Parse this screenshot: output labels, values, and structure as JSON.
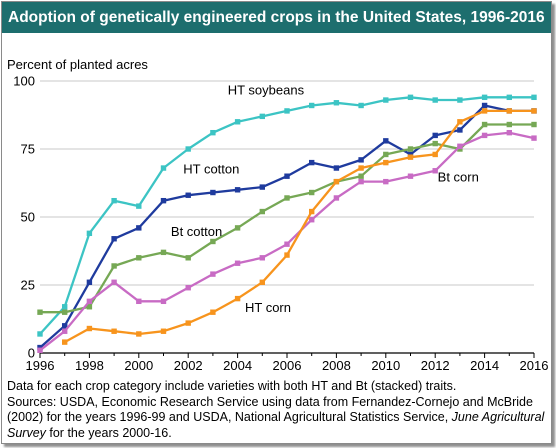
{
  "chart_data": {
    "type": "line",
    "title": "Adoption of genetically engineered crops in the United States, 1996-2016",
    "ylabel": "Percent of planted acres",
    "xlabel": "",
    "xlim": [
      1996,
      2016
    ],
    "ylim": [
      0,
      100
    ],
    "x_ticks": [
      "1996",
      "1998",
      "2000",
      "2002",
      "2004",
      "2006",
      "2008",
      "2010",
      "2012",
      "2014",
      "2016"
    ],
    "y_ticks": [
      "0",
      "25",
      "50",
      "75",
      "100"
    ],
    "grid": "horizontal",
    "legend": "inline-labels",
    "x": [
      1996,
      1997,
      1998,
      1999,
      2000,
      2001,
      2002,
      2003,
      2004,
      2005,
      2006,
      2007,
      2008,
      2009,
      2010,
      2011,
      2012,
      2013,
      2014,
      2015,
      2016
    ],
    "series": [
      {
        "name": "HT soybeans",
        "color": "#3cc4c4",
        "values": [
          7,
          17,
          44,
          56,
          54,
          68,
          75,
          81,
          85,
          87,
          89,
          91,
          92,
          91,
          93,
          94,
          93,
          93,
          94,
          94,
          94
        ]
      },
      {
        "name": "HT cotton",
        "color": "#1f3b9e",
        "values": [
          2,
          10,
          26,
          42,
          46,
          56,
          58,
          59,
          60,
          61,
          65,
          70,
          68,
          71,
          78,
          73,
          80,
          82,
          91,
          89,
          89
        ]
      },
      {
        "name": "Bt cotton",
        "color": "#76a855",
        "values": [
          15,
          15,
          17,
          32,
          35,
          37,
          35,
          41,
          46,
          52,
          57,
          59,
          63,
          65,
          73,
          75,
          77,
          75,
          84,
          84,
          84
        ]
      },
      {
        "name": "Bt corn",
        "color": "#c86bc4",
        "values": [
          1,
          8,
          19,
          26,
          19,
          19,
          24,
          29,
          33,
          35,
          40,
          49,
          57,
          63,
          63,
          65,
          67,
          76,
          80,
          81,
          79
        ]
      },
      {
        "name": "HT corn",
        "color": "#f7941d",
        "values": [
          null,
          4,
          9,
          8,
          7,
          8,
          11,
          15,
          20,
          26,
          36,
          52,
          63,
          68,
          70,
          72,
          73,
          85,
          89,
          89,
          89
        ]
      }
    ],
    "labels": {
      "ht_soybeans": "HT soybeans",
      "ht_cotton": "HT cotton",
      "bt_cotton": "Bt cotton",
      "bt_corn": "Bt corn",
      "ht_corn": "HT corn"
    }
  },
  "footnote": {
    "line1": "Data for each crop category include varieties with both HT and Bt (stacked) traits.",
    "sources_prefix": "Sources: USDA, Economic Research Service using data from Fernandez-Cornejo and McBride (2002) for the years 1996-99 and USDA, National Agricultural Statistics Service, ",
    "survey_name": "June Agricultural Survey",
    "sources_suffix": " for the years 2000-16."
  }
}
